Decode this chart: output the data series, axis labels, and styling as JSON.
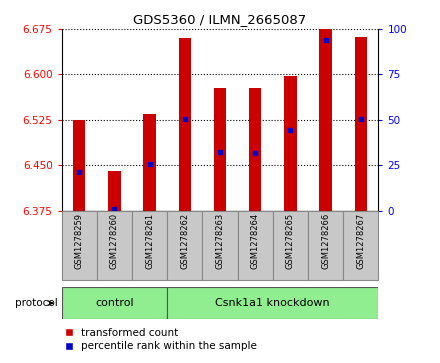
{
  "title": "GDS5360 / ILMN_2665087",
  "samples": [
    "GSM1278259",
    "GSM1278260",
    "GSM1278261",
    "GSM1278262",
    "GSM1278263",
    "GSM1278264",
    "GSM1278265",
    "GSM1278266",
    "GSM1278267"
  ],
  "bar_tops": [
    6.525,
    6.44,
    6.535,
    6.66,
    6.578,
    6.578,
    6.598,
    6.675,
    6.662
  ],
  "bar_bottom": 6.375,
  "blue_values": [
    6.438,
    6.378,
    6.452,
    6.527,
    6.472,
    6.47,
    6.508,
    6.657,
    6.527
  ],
  "ylim_left": [
    6.375,
    6.675
  ],
  "ylim_right": [
    0,
    100
  ],
  "yticks_left": [
    6.375,
    6.45,
    6.525,
    6.6,
    6.675
  ],
  "yticks_right": [
    0,
    25,
    50,
    75,
    100
  ],
  "bar_color": "#CC0000",
  "blue_color": "#0000CC",
  "group_labels": [
    "control",
    "Csnk1a1 knockdown"
  ],
  "group_color": "#90EE90",
  "tick_bg_color": "#C8C8C8",
  "tick_edge_color": "#888888",
  "protocol_label": "protocol",
  "legend_items": [
    "transformed count",
    "percentile rank within the sample"
  ],
  "bar_width": 0.35,
  "n_control": 3,
  "fig_width": 4.4,
  "fig_height": 3.63,
  "dpi": 100
}
